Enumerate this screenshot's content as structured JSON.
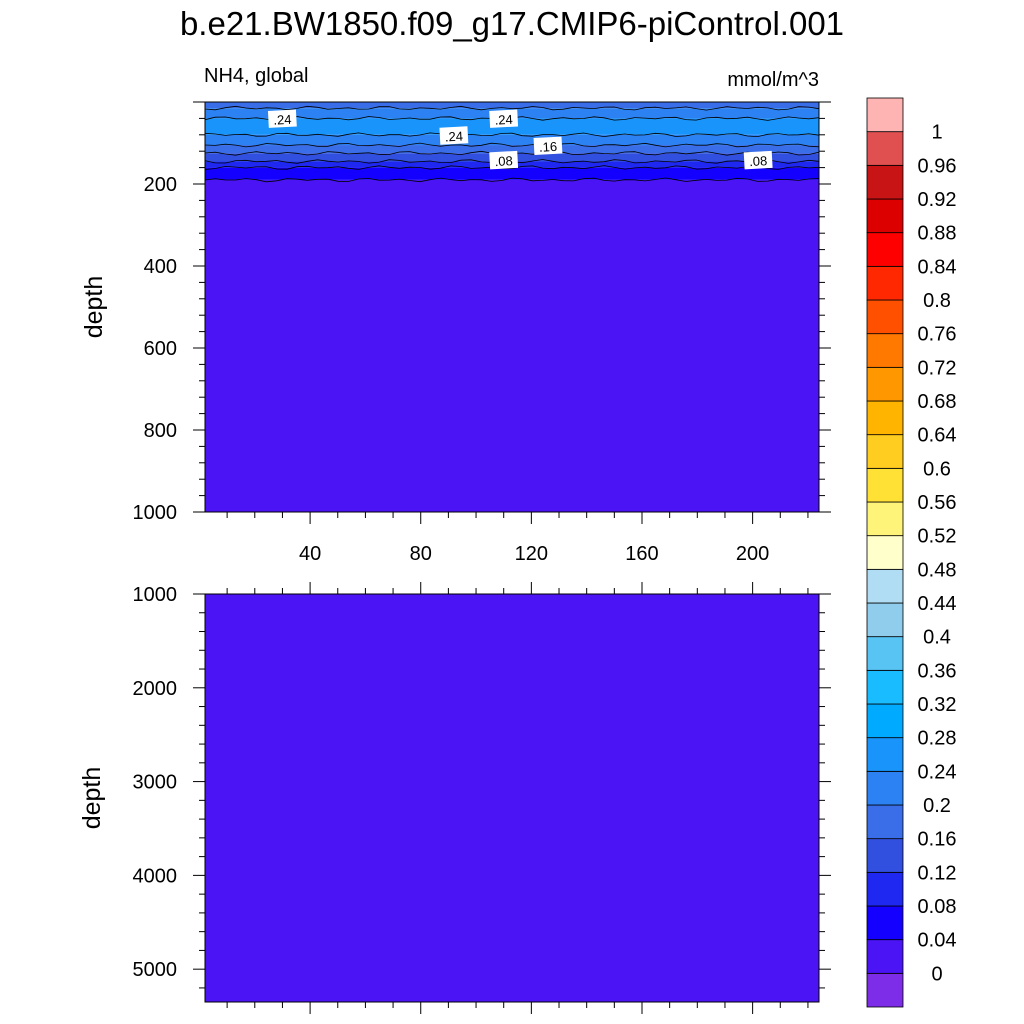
{
  "chart_data": [
    {
      "type": "heatmap",
      "panel": "upper",
      "title": "b.e21.BW1850.f09_g17.CMIP6-piControl.001",
      "left_label": "NH4, global",
      "right_label": "mmol/m^3",
      "ylabel": "depth",
      "xlabel": "",
      "xlim": [
        2,
        224
      ],
      "ylim": [
        1000,
        0
      ],
      "x_ticks": [
        40,
        80,
        120,
        160,
        200
      ],
      "y_ticks": [
        200,
        400,
        600,
        800,
        1000
      ],
      "layers": [
        {
          "top": 0,
          "bottom": 15,
          "value": 0.18
        },
        {
          "top": 15,
          "bottom": 40,
          "value": 0.22
        },
        {
          "top": 40,
          "bottom": 80,
          "value": 0.26
        },
        {
          "top": 80,
          "bottom": 105,
          "value": 0.22
        },
        {
          "top": 105,
          "bottom": 125,
          "value": 0.18
        },
        {
          "top": 125,
          "bottom": 145,
          "value": 0.14
        },
        {
          "top": 145,
          "bottom": 160,
          "value": 0.1
        },
        {
          "top": 160,
          "bottom": 190,
          "value": 0.06
        },
        {
          "top": 190,
          "bottom": 1000,
          "value": 0.02
        }
      ],
      "contour_lines": [
        15,
        40,
        80,
        105,
        125,
        145,
        160,
        190
      ],
      "contour_labels": [
        {
          "text": ".24",
          "x": 30,
          "depth": 42
        },
        {
          "text": ".24",
          "x": 110,
          "depth": 42
        },
        {
          "text": ".24",
          "x": 92,
          "depth": 83
        },
        {
          "text": ".16",
          "x": 126,
          "depth": 108
        },
        {
          "text": ".08",
          "x": 110,
          "depth": 143
        },
        {
          "text": ".08",
          "x": 202,
          "depth": 143
        }
      ]
    },
    {
      "type": "heatmap",
      "panel": "lower",
      "ylabel": "depth",
      "xlim": [
        2,
        224
      ],
      "ylim": [
        5350,
        1000
      ],
      "y_ticks": [
        1000,
        2000,
        3000,
        4000,
        5000
      ],
      "layers": [
        {
          "top": 1000,
          "bottom": 5350,
          "value": 0.02
        }
      ]
    }
  ],
  "colorbar": {
    "levels": [
      "0",
      "0.04",
      "0.08",
      "0.12",
      "0.16",
      "0.2",
      "0.24",
      "0.28",
      "0.32",
      "0.36",
      "0.4",
      "0.44",
      "0.48",
      "0.52",
      "0.56",
      "0.6",
      "0.64",
      "0.68",
      "0.72",
      "0.76",
      "0.8",
      "0.84",
      "0.88",
      "0.92",
      "0.96",
      "1"
    ],
    "colors": [
      "#7d2de8",
      "#4a14f5",
      "#1400ff",
      "#1e28f0",
      "#3250e0",
      "#3a6ee8",
      "#2c82f2",
      "#1894fa",
      "#00aaff",
      "#18bcff",
      "#58c4f4",
      "#90ccec",
      "#b0dcf4",
      "#ffffcc",
      "#fff47a",
      "#ffe034",
      "#ffcc20",
      "#ffb400",
      "#ff9800",
      "#ff7800",
      "#ff5000",
      "#ff2800",
      "#ff0000",
      "#dc0000",
      "#c81414",
      "#e05050",
      "#ffb4b4"
    ]
  }
}
